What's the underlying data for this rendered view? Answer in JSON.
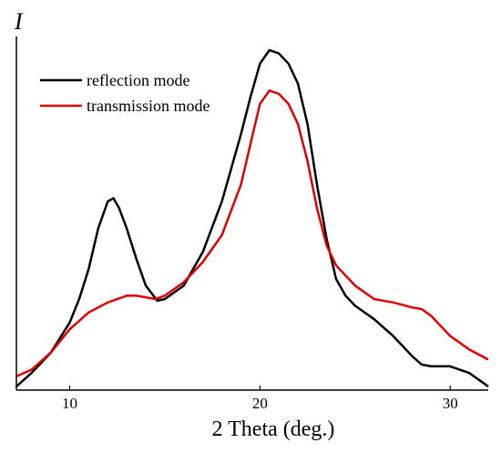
{
  "chart_data": {
    "type": "line",
    "xlabel": "2 Theta (deg.)",
    "ylabel": "I",
    "xlim": [
      7.2,
      32
    ],
    "ylim": [
      0,
      1
    ],
    "xticks": [
      10,
      20,
      30
    ],
    "grid": false,
    "legend_position": "top-left",
    "series": [
      {
        "name": "reflection mode",
        "color": "#000000",
        "x": [
          7.2,
          8.0,
          9.0,
          10.0,
          10.5,
          11.0,
          11.5,
          12.0,
          12.3,
          12.6,
          13.0,
          13.5,
          14.0,
          14.6,
          15.0,
          16.0,
          17.0,
          18.0,
          19.0,
          19.5,
          20.0,
          20.5,
          21.0,
          21.5,
          22.0,
          22.5,
          23.0,
          23.5,
          24.0,
          24.5,
          25.0,
          26.0,
          27.0,
          28.0,
          28.5,
          29.0,
          30.0,
          31.0,
          31.5,
          32.0
        ],
        "y": [
          0.0,
          0.04,
          0.1,
          0.19,
          0.26,
          0.35,
          0.47,
          0.55,
          0.56,
          0.53,
          0.47,
          0.38,
          0.3,
          0.255,
          0.26,
          0.3,
          0.4,
          0.55,
          0.75,
          0.86,
          0.96,
          1.0,
          0.99,
          0.96,
          0.9,
          0.78,
          0.6,
          0.44,
          0.32,
          0.27,
          0.24,
          0.2,
          0.15,
          0.09,
          0.065,
          0.06,
          0.06,
          0.04,
          0.02,
          0.0
        ]
      },
      {
        "name": "transmission mode",
        "color": "#e00000",
        "x": [
          7.2,
          8.0,
          9.0,
          10.0,
          11.0,
          12.0,
          13.0,
          13.5,
          14.0,
          14.5,
          15.0,
          16.0,
          17.0,
          18.0,
          19.0,
          19.5,
          20.0,
          20.5,
          21.0,
          21.5,
          22.0,
          22.5,
          23.0,
          23.5,
          24.0,
          25.0,
          26.0,
          27.0,
          28.0,
          28.5,
          29.0,
          30.0,
          31.0,
          32.0
        ],
        "y": [
          0.03,
          0.05,
          0.1,
          0.17,
          0.22,
          0.25,
          0.27,
          0.27,
          0.265,
          0.26,
          0.27,
          0.31,
          0.37,
          0.45,
          0.6,
          0.72,
          0.84,
          0.88,
          0.87,
          0.84,
          0.78,
          0.67,
          0.53,
          0.42,
          0.36,
          0.3,
          0.26,
          0.25,
          0.235,
          0.23,
          0.21,
          0.15,
          0.11,
          0.08
        ]
      }
    ]
  }
}
